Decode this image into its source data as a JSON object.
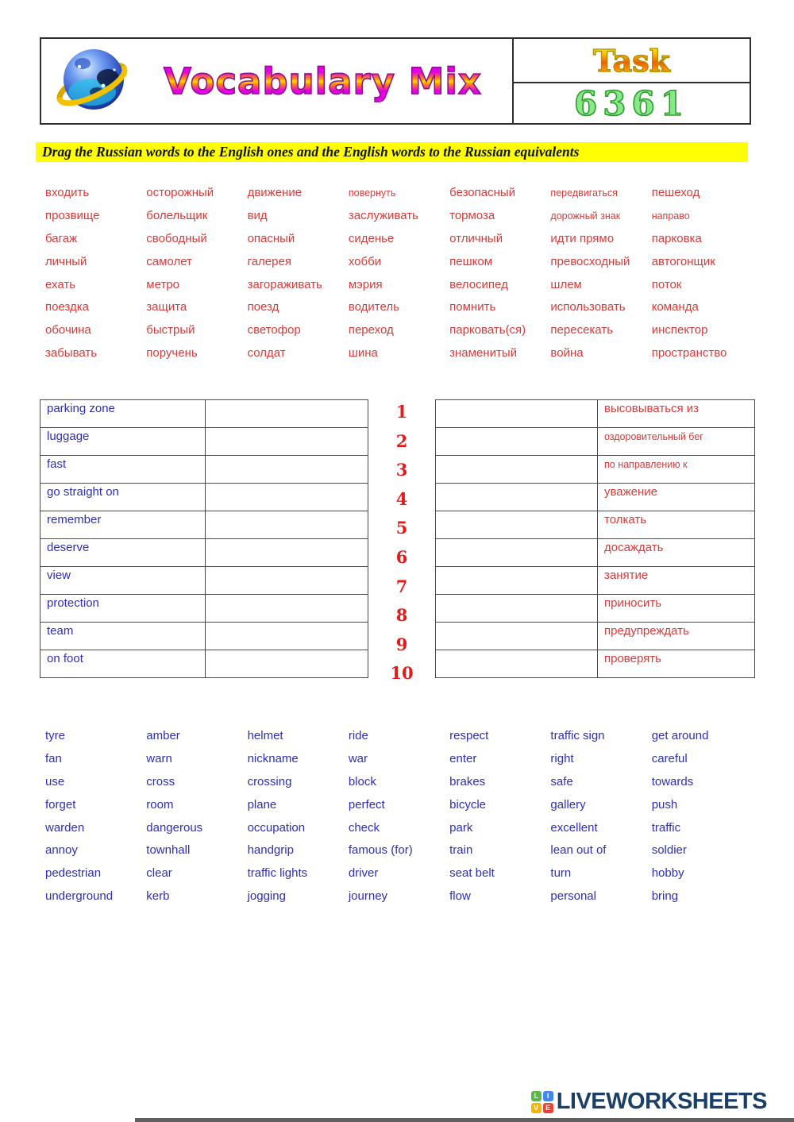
{
  "header": {
    "title": "Vocabulary Mix",
    "task_label": "Task",
    "task_number": "6361",
    "logo_icon": "globe-icon"
  },
  "instruction": "Drag the Russian words to the English ones and the English words to the Russian equivalents",
  "russian_grid": {
    "rows": [
      [
        "входить",
        "осторожный",
        "движение",
        "повернуть",
        "безопасный",
        "передвигаться",
        "пешеход"
      ],
      [
        "прозвище",
        "болельщик",
        "вид",
        "заслуживать",
        "тормоза",
        "дорожный знак",
        "направо"
      ],
      [
        "багаж",
        "свободный",
        "опасный",
        "сиденье",
        "отличный",
        "идти прямо",
        "парковка"
      ],
      [
        "личный",
        "самолет",
        "галерея",
        "хобби",
        "пешком",
        "превосходный",
        "автогонщик"
      ],
      [
        "ехать",
        "метро",
        "загораживать",
        "мэрия",
        "велосипед",
        "шлем",
        "поток"
      ],
      [
        "поездка",
        "защита",
        "поезд",
        "водитель",
        "помнить",
        "использовать",
        "команда"
      ],
      [
        "обочина",
        "быстрый",
        "светофор",
        "переход",
        "парковать(ся)",
        "пересекать",
        "инспектор"
      ],
      [
        "забывать",
        "поручень",
        "солдат",
        "шина",
        "знаменитый",
        "война",
        "пространство"
      ]
    ]
  },
  "small_words": [
    "повернуть",
    "передвигаться",
    "дорожный знак",
    "направо",
    "оздоровительный бег",
    "по направлению к"
  ],
  "match_left": {
    "english_words": [
      "parking zone",
      "luggage",
      "fast",
      "go straight on",
      "remember",
      "deserve",
      "view",
      "protection",
      "team",
      "on foot"
    ]
  },
  "match_numbers": [
    "1",
    "2",
    "3",
    "4",
    "5",
    "6",
    "7",
    "8",
    "9",
    "10"
  ],
  "match_right": {
    "russian_words": [
      "высовываться из",
      "оздоровительный бег",
      "по направлению к",
      "уважение",
      "толкать",
      "досаждать",
      "занятие",
      "приносить",
      "предупреждать",
      "проверять"
    ]
  },
  "english_grid": {
    "rows": [
      [
        "tyre",
        "amber",
        "helmet",
        "ride",
        "respect",
        "traffic sign",
        "get around"
      ],
      [
        "fan",
        "warn",
        "nickname",
        "war",
        "enter",
        "right",
        "careful"
      ],
      [
        "use",
        "cross",
        "crossing",
        "block",
        "brakes",
        "safe",
        "towards"
      ],
      [
        "forget",
        "room",
        "plane",
        "perfect",
        "bicycle",
        "gallery",
        "push"
      ],
      [
        "warden",
        "dangerous",
        "occupation",
        "check",
        "park",
        "excellent",
        "traffic"
      ],
      [
        "annoy",
        "townhall",
        "handgrip",
        "famous (for)",
        "train",
        "lean out of",
        "soldier"
      ],
      [
        "pedestrian",
        "clear",
        "traffic lights",
        "driver",
        "seat belt",
        "turn",
        "hobby"
      ],
      [
        "underground",
        "kerb",
        "jogging",
        "journey",
        "flow",
        "personal",
        "bring"
      ]
    ]
  },
  "footer": {
    "brand": "LIVEWORKSHEETS",
    "logo_tiles": [
      {
        "letter": "L",
        "color": "#58b947"
      },
      {
        "letter": "I",
        "color": "#4285f4"
      },
      {
        "letter": "V",
        "color": "#f4b400"
      },
      {
        "letter": "E",
        "color": "#ea4335"
      }
    ]
  },
  "colors": {
    "russian_word": "#d93b3b",
    "english_word": "#2e2eb8",
    "number_red": "#e21b1b",
    "highlight_yellow": "#ffff00",
    "brand_navy": "#1b3f66"
  }
}
